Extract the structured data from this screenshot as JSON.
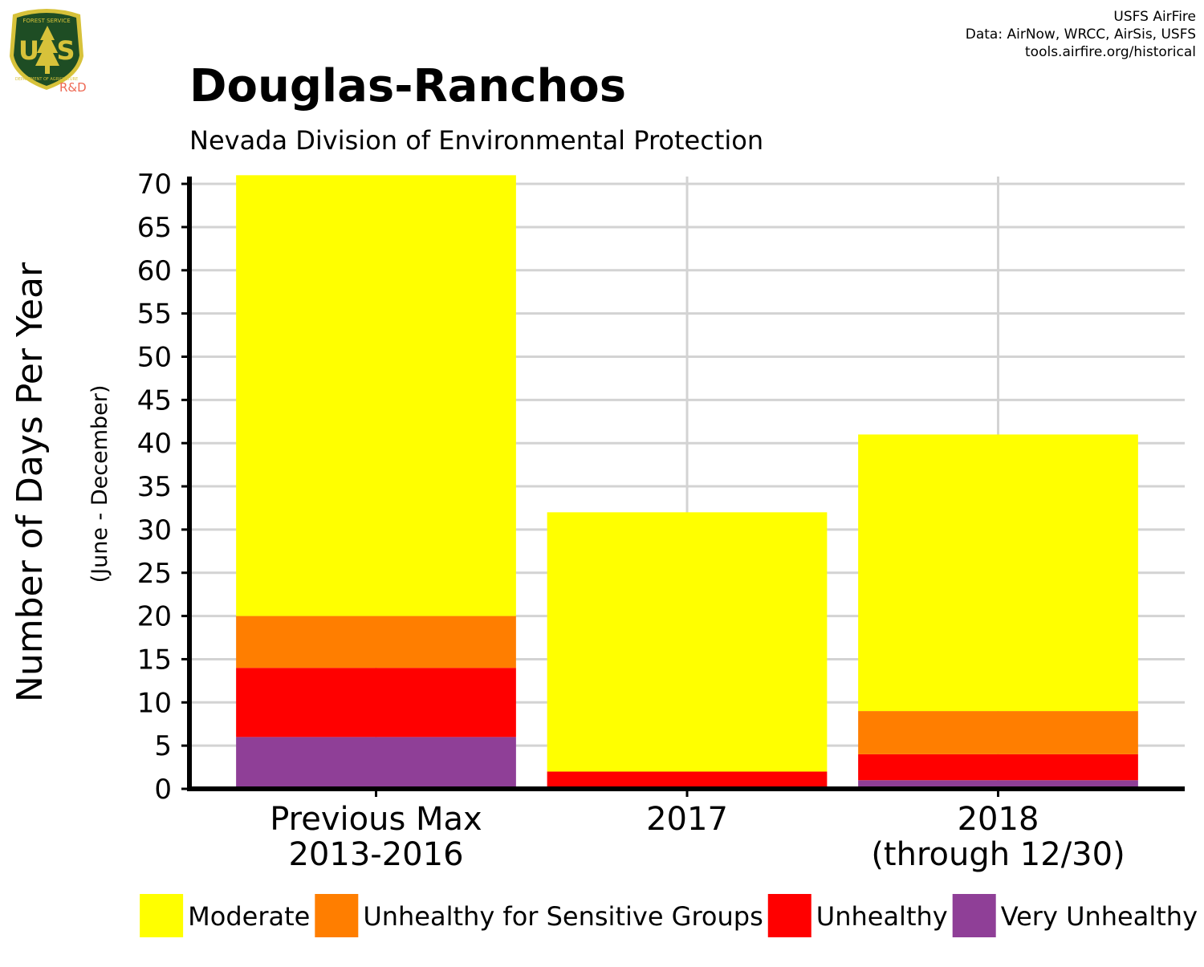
{
  "logo": {
    "letters": "USFS",
    "top_text": "FOREST SERVICE",
    "bottom_text": "DEPARTMENT OF AGRICULTURE",
    "rd_text": "R&D",
    "shield_color": "#1e4d24",
    "trim_color": "#d7c23a",
    "rd_color": "#ee6a55"
  },
  "credits": {
    "line1": "USFS AirFire",
    "line2": "Data: AirNow, WRCC, AirSis, USFS",
    "line3": "tools.airfire.org/historical"
  },
  "chart_data": {
    "type": "bar",
    "stacked": true,
    "title": "Douglas-Ranchos",
    "subtitle": "Nevada Division of Environmental Protection",
    "ylabel": "Number of Days Per Year",
    "ylabel_sub": "(June - December)",
    "xlabel": "",
    "categories": [
      [
        "Previous Max",
        "2013-2016"
      ],
      [
        "2017"
      ],
      [
        "2018",
        "(through 12/30)"
      ]
    ],
    "ylim": [
      0,
      70
    ],
    "yticks": [
      0,
      5,
      10,
      15,
      20,
      25,
      30,
      35,
      40,
      45,
      50,
      55,
      60,
      65,
      70
    ],
    "grid": true,
    "legend_position": "bottom",
    "series": [
      {
        "name": "Very Unhealthy",
        "color": "#8f3f97",
        "values": [
          6,
          0,
          1
        ]
      },
      {
        "name": "Unhealthy",
        "color": "#ff0000",
        "values": [
          8,
          2,
          3
        ]
      },
      {
        "name": "Unhealthy for Sensitive Groups",
        "color": "#ff7e00",
        "values": [
          6,
          0,
          5
        ]
      },
      {
        "name": "Moderate",
        "color": "#ffff00",
        "values": [
          51,
          30,
          32
        ]
      }
    ],
    "legend_order": [
      "Moderate",
      "Unhealthy for Sensitive Groups",
      "Unhealthy",
      "Very Unhealthy"
    ]
  }
}
